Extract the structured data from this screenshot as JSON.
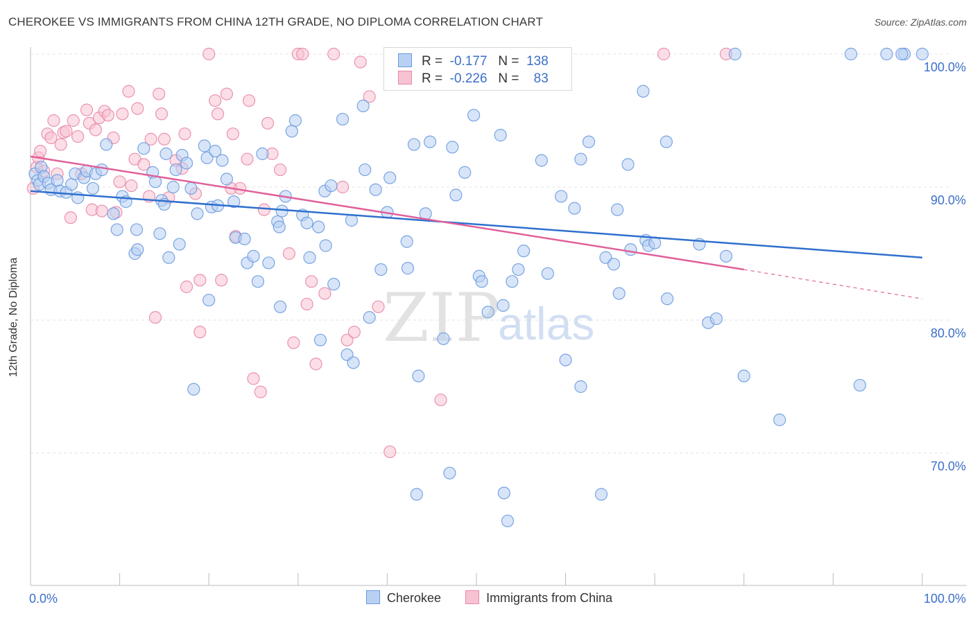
{
  "title": "CHEROKEE VS IMMIGRANTS FROM CHINA 12TH GRADE, NO DIPLOMA CORRELATION CHART",
  "source": "Source: ZipAtlas.com",
  "watermark": {
    "zip": "ZIP",
    "atlas": "atlas"
  },
  "legend": {
    "rows": [
      {
        "r_label": "R =",
        "r_value": "-0.177",
        "n_label": "N =",
        "n_value": "138"
      },
      {
        "r_label": "R =",
        "r_value": "-0.226",
        "n_label": "N =",
        "n_value": "83"
      }
    ]
  },
  "colors": {
    "cherokee_fill": "#b8d0f2",
    "cherokee_stroke": "#6a9be0",
    "cherokee_line": "#2f6fce",
    "china_fill": "#f7c2d2",
    "china_stroke": "#e888a8",
    "china_line": "#e0609a",
    "axis_text": "#3b6fc9",
    "grid": "#e3e3e3"
  },
  "chart_data": {
    "type": "scatter",
    "title": "CHEROKEE VS IMMIGRANTS FROM CHINA 12TH GRADE, NO DIPLOMA CORRELATION CHART",
    "xlabel": "",
    "ylabel": "12th Grade, No Diploma",
    "x_tick_labels": [
      "0.0%",
      "100.0%"
    ],
    "y_tick_labels": [
      "100.0%",
      "90.0%",
      "80.0%",
      "70.0%"
    ],
    "y_ticks": [
      100,
      90,
      80,
      70
    ],
    "xlim": [
      0,
      100
    ],
    "ylim": [
      61.0,
      101.0
    ],
    "grid": true,
    "legend_position": "top-center",
    "series": [
      {
        "name": "Cherokee",
        "R": -0.177,
        "N": 138,
        "trend": {
          "x": [
            0,
            100
          ],
          "y": [
            89.7,
            84.7
          ]
        },
        "points": [
          [
            0.5,
            91.0
          ],
          [
            0.8,
            90.5
          ],
          [
            1.0,
            90.2
          ],
          [
            1.2,
            91.5
          ],
          [
            1.5,
            90.8
          ],
          [
            2.0,
            90.3
          ],
          [
            2.3,
            89.8
          ],
          [
            3.0,
            90.5
          ],
          [
            3.3,
            89.7
          ],
          [
            4.0,
            89.6
          ],
          [
            4.6,
            90.2
          ],
          [
            5.0,
            91.0
          ],
          [
            5.3,
            89.2
          ],
          [
            6.0,
            90.7
          ],
          [
            6.3,
            91.2
          ],
          [
            7.0,
            89.9
          ],
          [
            7.3,
            91.0
          ],
          [
            8.0,
            91.3
          ],
          [
            8.5,
            93.2
          ],
          [
            9.3,
            88.0
          ],
          [
            9.7,
            86.8
          ],
          [
            10.3,
            89.3
          ],
          [
            10.7,
            88.9
          ],
          [
            11.7,
            85.0
          ],
          [
            12.0,
            85.3
          ],
          [
            11.9,
            86.8
          ],
          [
            12.7,
            92.9
          ],
          [
            13.7,
            91.1
          ],
          [
            14.0,
            90.4
          ],
          [
            14.7,
            89.0
          ],
          [
            15.0,
            88.7
          ],
          [
            15.2,
            92.5
          ],
          [
            16.0,
            90.0
          ],
          [
            16.3,
            91.3
          ],
          [
            17.0,
            92.4
          ],
          [
            17.5,
            91.8
          ],
          [
            18.0,
            89.9
          ],
          [
            18.7,
            88.0
          ],
          [
            19.5,
            93.1
          ],
          [
            19.8,
            92.2
          ],
          [
            20.3,
            88.5
          ],
          [
            20.7,
            92.7
          ],
          [
            21.0,
            88.6
          ],
          [
            21.5,
            92.0
          ],
          [
            22.0,
            90.6
          ],
          [
            22.8,
            88.9
          ],
          [
            23.0,
            86.2
          ],
          [
            24.0,
            86.1
          ],
          [
            24.3,
            84.3
          ],
          [
            25.0,
            84.8
          ],
          [
            26.0,
            92.5
          ],
          [
            26.7,
            84.3
          ],
          [
            27.7,
            87.4
          ],
          [
            27.9,
            87.0
          ],
          [
            28.2,
            88.2
          ],
          [
            28.6,
            89.3
          ],
          [
            29.3,
            94.2
          ],
          [
            29.7,
            95.0
          ],
          [
            30.5,
            87.9
          ],
          [
            31.0,
            87.3
          ],
          [
            31.3,
            84.7
          ],
          [
            32.3,
            87.0
          ],
          [
            32.5,
            78.5
          ],
          [
            33.0,
            89.7
          ],
          [
            33.7,
            90.1
          ],
          [
            34.0,
            82.7
          ],
          [
            35.0,
            95.1
          ],
          [
            35.5,
            77.4
          ],
          [
            36.0,
            87.5
          ],
          [
            37.3,
            96.1
          ],
          [
            37.5,
            91.3
          ],
          [
            38.7,
            89.8
          ],
          [
            39.3,
            83.8
          ],
          [
            40.0,
            88.1
          ],
          [
            40.3,
            90.7
          ],
          [
            42.2,
            85.9
          ],
          [
            42.3,
            83.9
          ],
          [
            43.0,
            93.2
          ],
          [
            43.5,
            75.8
          ],
          [
            44.3,
            88.0
          ],
          [
            44.8,
            93.4
          ],
          [
            46.3,
            78.6
          ],
          [
            47.3,
            93.0
          ],
          [
            47.7,
            89.4
          ],
          [
            48.7,
            91.1
          ],
          [
            49.7,
            95.4
          ],
          [
            50.3,
            83.3
          ],
          [
            50.6,
            82.9
          ],
          [
            51.3,
            80.6
          ],
          [
            52.7,
            93.9
          ],
          [
            53.0,
            81.1
          ],
          [
            54.0,
            82.9
          ],
          [
            54.7,
            83.8
          ],
          [
            55.3,
            85.2
          ],
          [
            57.3,
            92.0
          ],
          [
            58.0,
            83.5
          ],
          [
            59.5,
            89.3
          ],
          [
            61.0,
            88.4
          ],
          [
            61.7,
            92.1
          ],
          [
            64.5,
            84.7
          ],
          [
            65.4,
            84.2
          ],
          [
            65.8,
            88.3
          ],
          [
            67.0,
            91.7
          ],
          [
            67.3,
            85.3
          ],
          [
            68.7,
            97.2
          ],
          [
            69.0,
            86.0
          ],
          [
            69.3,
            85.6
          ],
          [
            70.0,
            85.8
          ],
          [
            71.3,
            93.4
          ],
          [
            75.0,
            85.7
          ],
          [
            76.0,
            79.8
          ],
          [
            76.9,
            80.1
          ],
          [
            78.0,
            84.8
          ],
          [
            79.0,
            100.0
          ],
          [
            80.0,
            75.8
          ],
          [
            84.0,
            72.5
          ],
          [
            92.0,
            100.0
          ],
          [
            93.0,
            75.1
          ],
          [
            96.0,
            100.0
          ],
          [
            98.0,
            100.0
          ],
          [
            100.0,
            100.0
          ],
          [
            97.7,
            100.0
          ],
          [
            53.0,
            100.0
          ],
          [
            56.8,
            100.0
          ],
          [
            57.0,
            100.0
          ],
          [
            43.3,
            66.9
          ],
          [
            47.0,
            68.5
          ],
          [
            53.5,
            64.9
          ],
          [
            53.1,
            67.0
          ],
          [
            58.1,
            100.0
          ],
          [
            60.0,
            77.0
          ],
          [
            61.7,
            75.0
          ],
          [
            62.6,
            93.4
          ],
          [
            64.0,
            66.9
          ],
          [
            66.0,
            82.0
          ],
          [
            71.4,
            81.6
          ],
          [
            28.0,
            81.0
          ],
          [
            33.1,
            85.6
          ],
          [
            36.2,
            76.8
          ],
          [
            18.3,
            74.8
          ],
          [
            14.5,
            86.5
          ],
          [
            15.5,
            84.7
          ],
          [
            16.7,
            85.7
          ],
          [
            20.0,
            81.5
          ],
          [
            25.5,
            82.9
          ],
          [
            38.0,
            80.2
          ]
        ]
      },
      {
        "name": "Immigrants from China",
        "R": -0.226,
        "N": 83,
        "trend": {
          "x": [
            0,
            80
          ],
          "y": [
            92.3,
            83.8
          ]
        },
        "trend_dashed": {
          "x": [
            80,
            100
          ],
          "y": [
            83.8,
            81.6
          ]
        },
        "points": [
          [
            0.3,
            89.9
          ],
          [
            0.7,
            91.5
          ],
          [
            0.9,
            92.2
          ],
          [
            1.1,
            92.7
          ],
          [
            1.5,
            91.2
          ],
          [
            1.9,
            94.0
          ],
          [
            2.3,
            93.7
          ],
          [
            2.6,
            95.0
          ],
          [
            3.0,
            91.0
          ],
          [
            3.4,
            93.2
          ],
          [
            3.7,
            94.1
          ],
          [
            4.0,
            94.2
          ],
          [
            4.5,
            87.7
          ],
          [
            4.8,
            95.0
          ],
          [
            5.3,
            93.8
          ],
          [
            5.7,
            91.0
          ],
          [
            6.3,
            95.8
          ],
          [
            6.6,
            94.8
          ],
          [
            6.9,
            88.3
          ],
          [
            7.3,
            94.3
          ],
          [
            7.7,
            95.2
          ],
          [
            8.0,
            88.2
          ],
          [
            8.3,
            95.7
          ],
          [
            8.7,
            95.4
          ],
          [
            9.3,
            93.7
          ],
          [
            9.6,
            88.1
          ],
          [
            10.0,
            90.4
          ],
          [
            10.3,
            95.5
          ],
          [
            11.0,
            97.2
          ],
          [
            11.3,
            90.1
          ],
          [
            11.7,
            92.1
          ],
          [
            12.0,
            95.9
          ],
          [
            12.7,
            91.7
          ],
          [
            13.3,
            89.3
          ],
          [
            13.5,
            93.6
          ],
          [
            14.0,
            80.2
          ],
          [
            14.4,
            97.0
          ],
          [
            14.7,
            95.5
          ],
          [
            15.0,
            93.6
          ],
          [
            15.5,
            89.2
          ],
          [
            16.3,
            92.0
          ],
          [
            17.0,
            91.4
          ],
          [
            17.5,
            82.5
          ],
          [
            18.5,
            89.5
          ],
          [
            19.0,
            79.1
          ],
          [
            20.0,
            100.0
          ],
          [
            20.7,
            96.5
          ],
          [
            21.0,
            95.5
          ],
          [
            21.4,
            83.0
          ],
          [
            22.0,
            97.0
          ],
          [
            22.5,
            89.9
          ],
          [
            22.7,
            94.0
          ],
          [
            23.0,
            86.3
          ],
          [
            23.5,
            89.9
          ],
          [
            24.3,
            92.1
          ],
          [
            24.5,
            96.5
          ],
          [
            25.0,
            75.6
          ],
          [
            25.8,
            74.6
          ],
          [
            26.2,
            88.3
          ],
          [
            26.6,
            94.8
          ],
          [
            27.1,
            92.5
          ],
          [
            28.0,
            91.3
          ],
          [
            29.0,
            85.0
          ],
          [
            29.5,
            78.3
          ],
          [
            30.0,
            100.0
          ],
          [
            31.0,
            81.2
          ],
          [
            31.5,
            82.9
          ],
          [
            32.0,
            76.7
          ],
          [
            33.0,
            82.0
          ],
          [
            34.0,
            100.0
          ],
          [
            35.0,
            90.0
          ],
          [
            35.5,
            78.5
          ],
          [
            36.3,
            79.1
          ],
          [
            37.0,
            99.4
          ],
          [
            38.0,
            96.8
          ],
          [
            39.0,
            81.0
          ],
          [
            40.3,
            70.1
          ],
          [
            46.0,
            74.0
          ],
          [
            71.0,
            100.0
          ],
          [
            78.0,
            100.0
          ],
          [
            30.5,
            100.0
          ],
          [
            19.0,
            83.0
          ],
          [
            17.3,
            94.0
          ]
        ]
      }
    ]
  },
  "bottom_legend": [
    "Cherokee",
    "Immigrants from China"
  ]
}
